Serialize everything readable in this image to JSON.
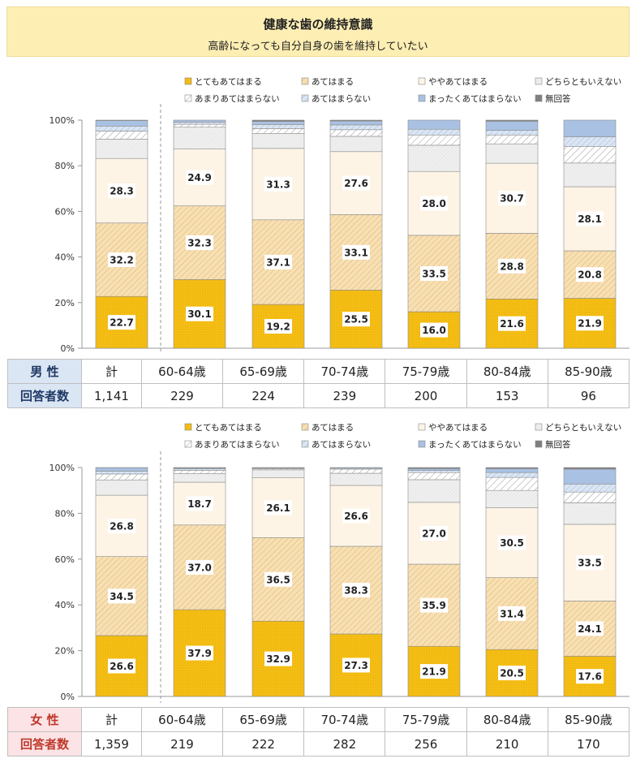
{
  "title": "健康な歯の維持意識",
  "subtitle": "高齢になっても自分自身の歯を維持していたい",
  "colors": {
    "strongly_agree": "#f5bf14",
    "agree": "#f8e0b4",
    "somewhat_agree": "#fdf4e6",
    "neutral": "#f0f0f0",
    "somewhat_disagree": "#ffffff",
    "disagree": "#dbe6f4",
    "strongly_disagree": "#a9c1e2",
    "no_answer": "#7f7f7f"
  },
  "legend": [
    "とてもあてはまる",
    "あてはまる",
    "ややあてはまる",
    "どちらともいえない",
    "あまりあてはまらない",
    "あてはまらない",
    "まったくあてはまらない",
    "無回答"
  ],
  "y_ticks": [
    "0%",
    "20%",
    "40%",
    "60%",
    "80%",
    "100%"
  ],
  "men_table": {
    "label": "男 性",
    "resp_label": "回答者数",
    "categories": [
      "計",
      "60-64歳",
      "65-69歳",
      "70-74歳",
      "75-79歳",
      "80-84歳",
      "85-90歳"
    ],
    "counts": [
      "1,141",
      "229",
      "224",
      "239",
      "200",
      "153",
      "96"
    ]
  },
  "women_table": {
    "label": "女 性",
    "resp_label": "回答者数",
    "categories": [
      "計",
      "60-64歳",
      "65-69歳",
      "70-74歳",
      "75-79歳",
      "80-84歳",
      "85-90歳"
    ],
    "counts": [
      "1,359",
      "219",
      "222",
      "282",
      "256",
      "210",
      "170"
    ]
  },
  "chart_data": [
    {
      "type": "bar",
      "stacked": true,
      "group": "男性",
      "categories": [
        "計",
        "60-64歳",
        "65-69歳",
        "70-74歳",
        "75-79歳",
        "80-84歳",
        "85-90歳"
      ],
      "ylim": [
        0,
        100
      ],
      "series": [
        {
          "name": "とてもあてはまる",
          "values": [
            22.7,
            30.1,
            19.2,
            25.5,
            16.0,
            21.6,
            21.9
          ],
          "labeled": true
        },
        {
          "name": "あてはまる",
          "values": [
            32.2,
            32.3,
            37.1,
            33.1,
            33.5,
            28.8,
            20.8
          ],
          "labeled": true
        },
        {
          "name": "ややあてはまる",
          "values": [
            28.3,
            24.9,
            31.3,
            27.6,
            28.0,
            30.7,
            28.1
          ],
          "labeled": true
        },
        {
          "name": "どちらともいえない",
          "values": [
            8.5,
            9.6,
            6.5,
            6.7,
            11.5,
            8.5,
            10.4
          ]
        },
        {
          "name": "あまりあてはまらない",
          "values": [
            3.5,
            1.3,
            2.2,
            2.9,
            4.5,
            3.9,
            7.3
          ]
        },
        {
          "name": "あてはまらない",
          "values": [
            2.2,
            0.9,
            1.8,
            2.1,
            2.5,
            2.0,
            4.2
          ]
        },
        {
          "name": "まったくあてはまらない",
          "values": [
            2.4,
            0.9,
            1.3,
            1.7,
            4.0,
            4.0,
            7.3
          ]
        },
        {
          "name": "無回答",
          "values": [
            0.2,
            0.0,
            0.6,
            0.4,
            0.0,
            0.5,
            0.0
          ]
        }
      ]
    },
    {
      "type": "bar",
      "stacked": true,
      "group": "女性",
      "categories": [
        "計",
        "60-64歳",
        "65-69歳",
        "70-74歳",
        "75-79歳",
        "80-84歳",
        "85-90歳"
      ],
      "ylim": [
        0,
        100
      ],
      "series": [
        {
          "name": "とてもあてはまる",
          "values": [
            26.6,
            37.9,
            32.9,
            27.3,
            21.9,
            20.5,
            17.6
          ],
          "labeled": true
        },
        {
          "name": "あてはまる",
          "values": [
            34.5,
            37.0,
            36.5,
            38.3,
            35.9,
            31.4,
            24.1
          ],
          "labeled": true
        },
        {
          "name": "ややあてはまる",
          "values": [
            26.8,
            18.7,
            26.1,
            26.6,
            27.0,
            30.5,
            33.5
          ],
          "labeled": true
        },
        {
          "name": "どちらともいえない",
          "values": [
            6.7,
            3.7,
            3.5,
            5.3,
            9.9,
            7.6,
            9.4
          ]
        },
        {
          "name": "あまりあてはまらない",
          "values": [
            2.6,
            1.5,
            0.5,
            1.8,
            3.1,
            5.7,
            4.7
          ]
        },
        {
          "name": "あてはまらない",
          "values": [
            1.2,
            0.6,
            0.3,
            0.4,
            0.9,
            2.1,
            3.5
          ]
        },
        {
          "name": "まったくあてはまらない",
          "values": [
            1.5,
            0.4,
            0.2,
            0.3,
            0.8,
            1.7,
            6.5
          ]
        },
        {
          "name": "無回答",
          "values": [
            0.1,
            0.2,
            0.0,
            0.0,
            0.5,
            0.5,
            0.7
          ]
        }
      ]
    }
  ]
}
